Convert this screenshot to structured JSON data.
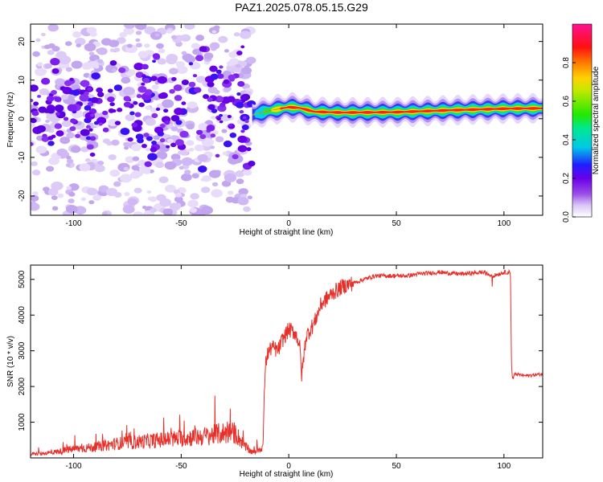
{
  "figure": {
    "title": "PAZ1.2025.078.05.15.G29"
  },
  "chart_data": [
    {
      "type": "heatmap",
      "xlabel": "Height of straight line (km)",
      "ylabel": "Frequency (Hz)",
      "xlim": [
        -120,
        118
      ],
      "ylim": [
        -25,
        24.5
      ],
      "xticks": [
        -100,
        -50,
        0,
        50,
        100
      ],
      "yticks": [
        -20,
        -10,
        0,
        10,
        20
      ],
      "colorbar": {
        "label": "Normalized spectral amplitude",
        "range": [
          0,
          1
        ],
        "ticks": [
          0.0,
          0.2,
          0.4,
          0.6,
          0.8
        ],
        "tick_labels": [
          "0.0",
          "0.2",
          "0.4",
          "0.6",
          "0.8"
        ],
        "colormap": "rainbow (white-violet-blue-cyan-green-yellow-red-magenta)"
      },
      "features": {
        "noise_region_x": [
          -120,
          -17
        ],
        "signal_band": [
          {
            "x": -17,
            "freq": 1.0,
            "amp": 0.35
          },
          {
            "x": -10,
            "freq": 2.0,
            "amp": 0.6
          },
          {
            "x": -5,
            "freq": 2.5,
            "amp": 0.8
          },
          {
            "x": 0,
            "freq": 3.0,
            "amp": 0.85
          },
          {
            "x": 5,
            "freq": 2.8,
            "amp": 0.9
          },
          {
            "x": 12,
            "freq": 1.8,
            "amp": 0.9
          },
          {
            "x": 25,
            "freq": 1.6,
            "amp": 0.95
          },
          {
            "x": 50,
            "freq": 1.7,
            "amp": 0.9
          },
          {
            "x": 75,
            "freq": 2.2,
            "amp": 0.9
          },
          {
            "x": 100,
            "freq": 2.6,
            "amp": 0.95
          },
          {
            "x": 118,
            "freq": 2.7,
            "amp": 0.9
          }
        ]
      }
    },
    {
      "type": "line",
      "xlabel": "Height of straight line (km)",
      "ylabel": "SNR (10 * v/v)",
      "xlim": [
        -120,
        118
      ],
      "ylim": [
        0,
        5400
      ],
      "xticks": [
        -100,
        -50,
        0,
        50,
        100
      ],
      "yticks": [
        1000,
        2000,
        3000,
        4000,
        5000
      ],
      "line_color": "#e8302a",
      "series": [
        {
          "x": [
            -120,
            -110,
            -100,
            -90,
            -80,
            -70,
            -60,
            -50,
            -40,
            -35,
            -30,
            -25,
            -20,
            -17,
            -12,
            -11,
            -10,
            -8,
            -5,
            -3,
            0,
            3,
            5,
            6,
            8,
            10,
            12,
            15,
            20,
            25,
            30,
            35,
            40,
            45,
            50,
            55,
            60,
            70,
            80,
            90,
            95,
            100,
            103,
            103.5,
            104,
            105,
            110,
            118
          ],
          "y": [
            100,
            150,
            250,
            300,
            400,
            450,
            500,
            550,
            600,
            650,
            700,
            700,
            300,
            150,
            300,
            2500,
            2900,
            3100,
            3000,
            3300,
            3600,
            3500,
            3200,
            2300,
            3400,
            3600,
            3800,
            4300,
            4600,
            4800,
            4900,
            5000,
            5100,
            5100,
            5100,
            5100,
            5150,
            5200,
            5150,
            5200,
            5100,
            5200,
            5200,
            2600,
            2200,
            2350,
            2300,
            2350
          ]
        }
      ]
    }
  ]
}
